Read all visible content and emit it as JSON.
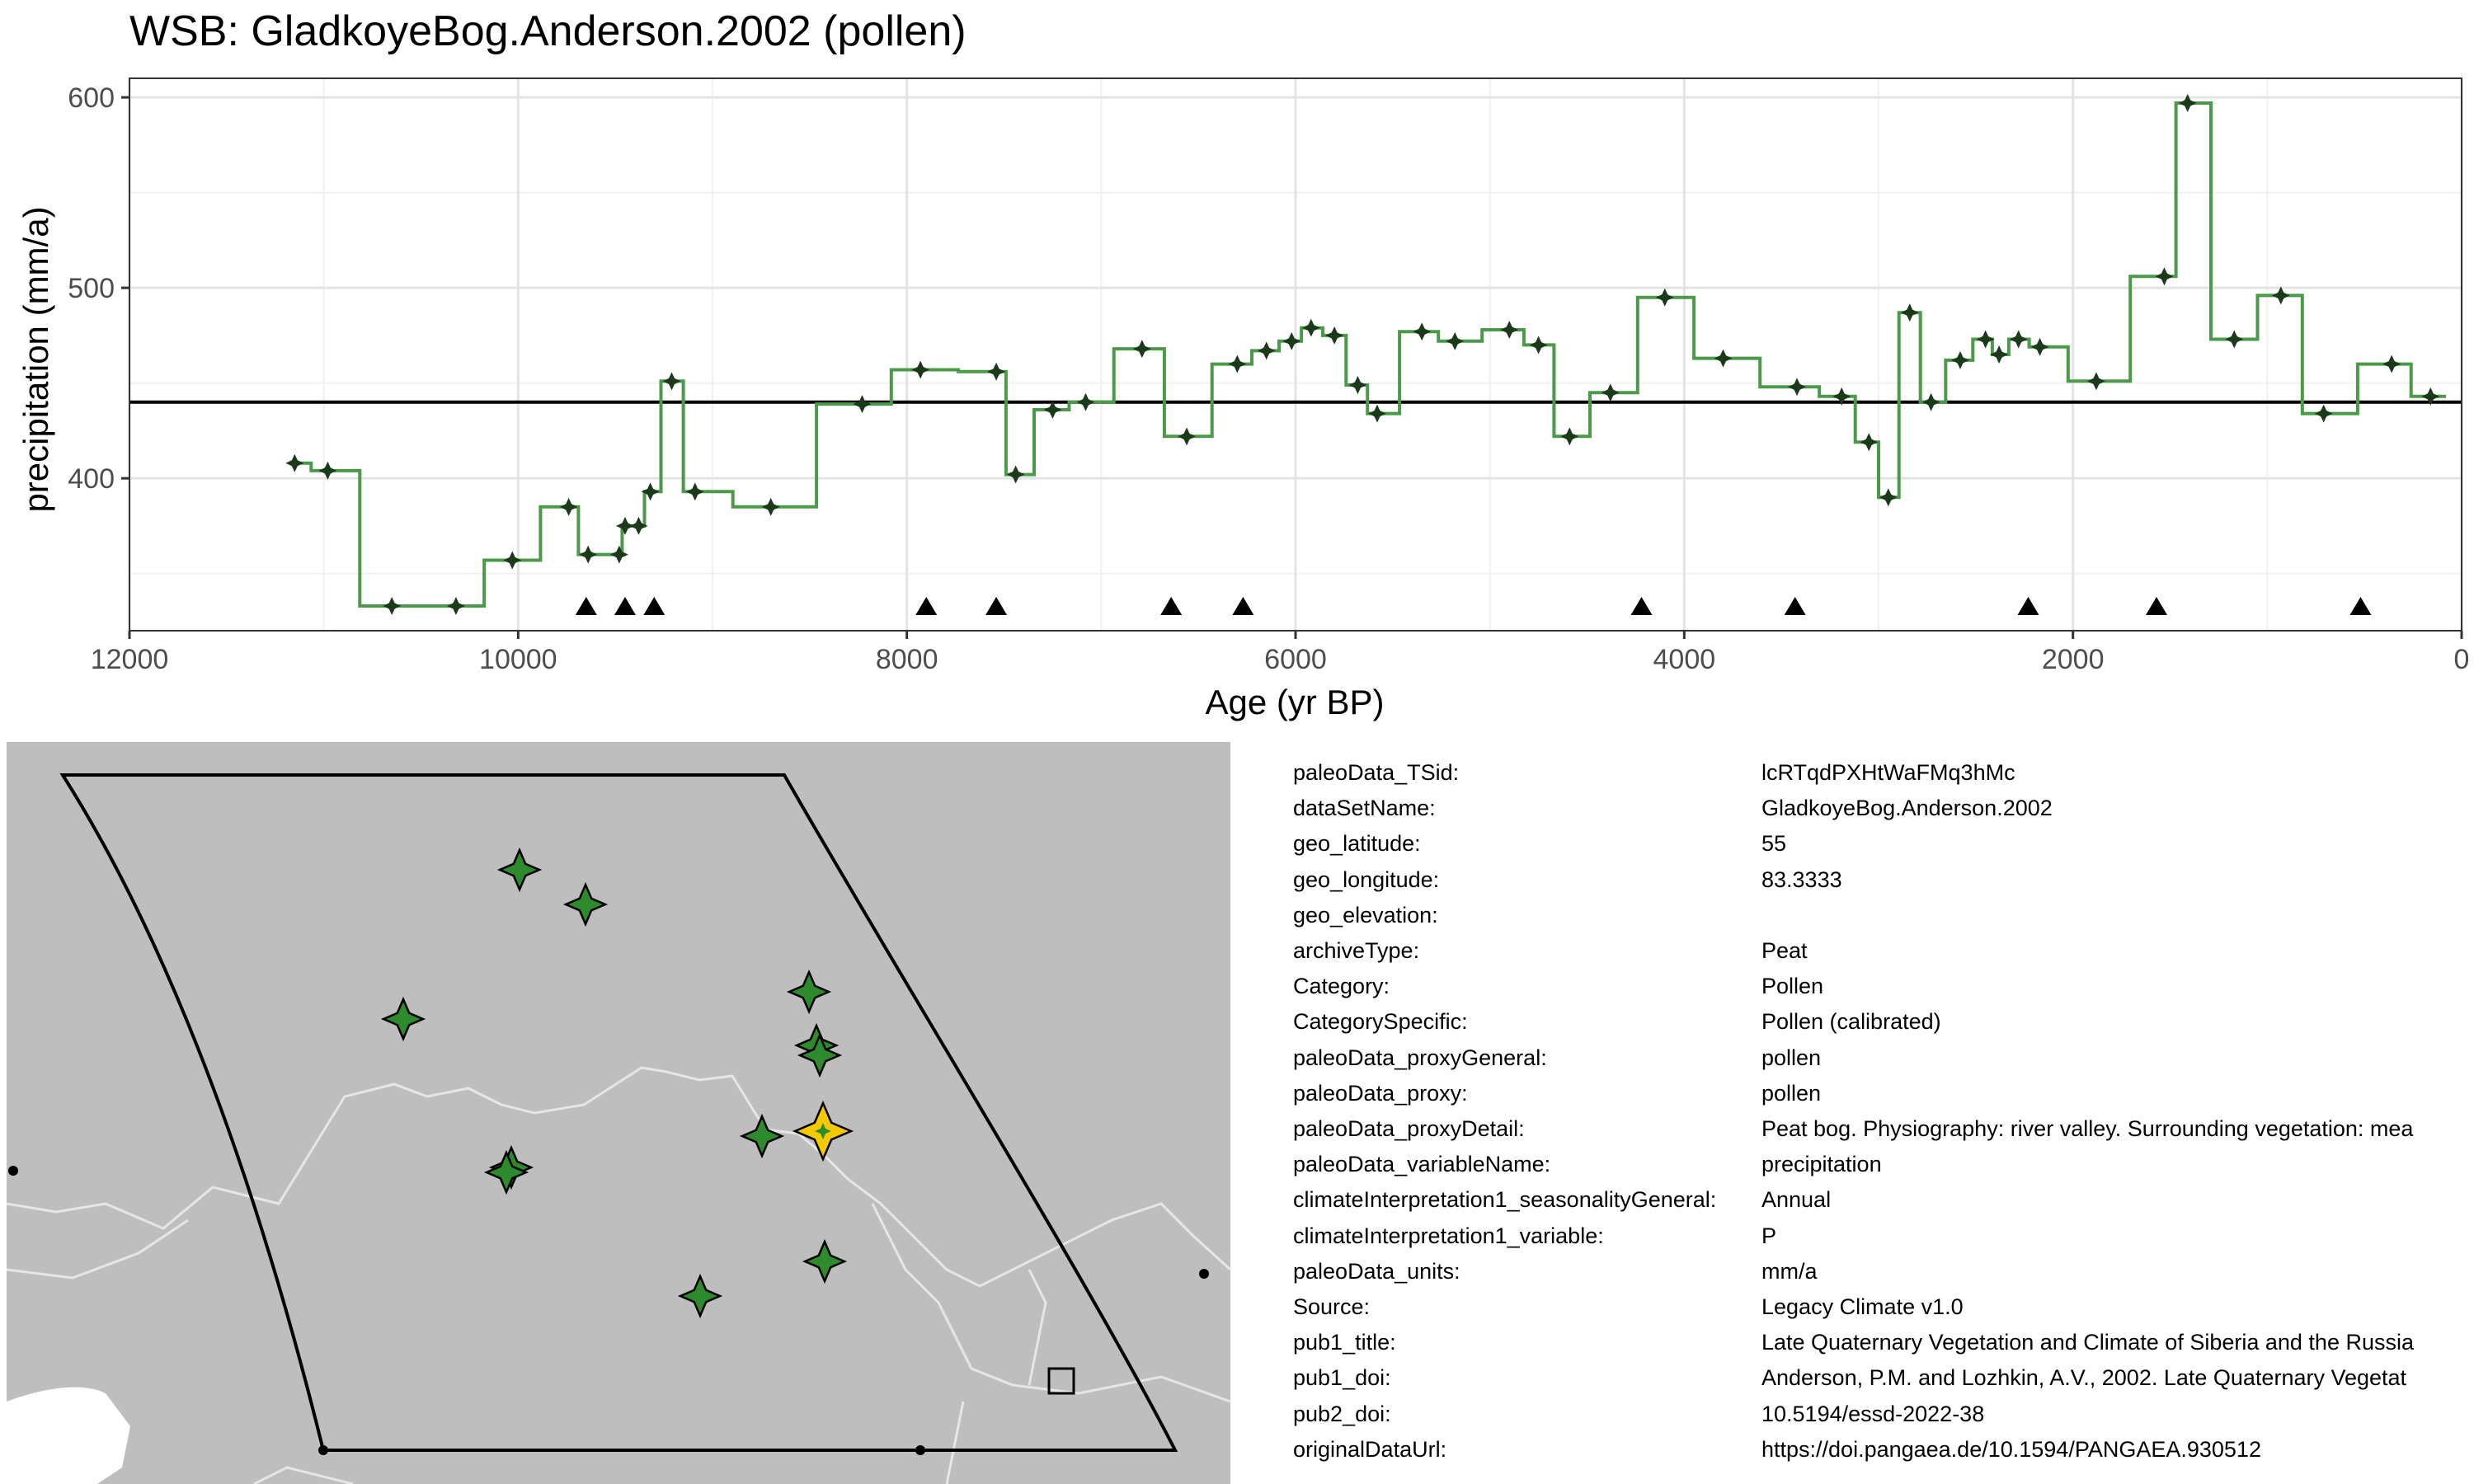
{
  "chart_data": {
    "type": "line",
    "subtype": "step",
    "title": "WSB: GladkoyeBog.Anderson.2002 (pollen)",
    "xlabel": "Age (yr BP)",
    "ylabel": "precipitation (mm/a)",
    "xlim": [
      12000,
      0
    ],
    "x_reversed": true,
    "ylim": [
      320,
      610
    ],
    "x_ticks": [
      12000,
      10000,
      8000,
      6000,
      4000,
      2000,
      0
    ],
    "y_ticks": [
      400,
      500,
      600
    ],
    "grid": true,
    "reference_line": 440,
    "line_color": "#4a9a4a",
    "point_color": "#1a3a1a",
    "series": [
      {
        "x": [
          11150,
          10980,
          10650,
          10320,
          10030,
          9740,
          9640,
          9480,
          9450,
          9380,
          9320,
          9210,
          9090,
          8700,
          8230,
          7930,
          7540,
          7440,
          7250,
          7080,
          6790,
          6560,
          6300,
          6150,
          6020,
          5920,
          5800,
          5680,
          5580,
          5350,
          5180,
          4900,
          4750,
          4590,
          4380,
          4100,
          3800,
          3420,
          3190,
          3050,
          2950,
          2840,
          2730,
          2580,
          2450,
          2380,
          2280,
          2170,
          1880,
          1530,
          1410,
          1170,
          930,
          710,
          360,
          160
        ],
        "y": [
          408,
          404,
          333,
          333,
          357,
          385,
          360,
          360,
          375,
          375,
          393,
          451,
          393,
          385,
          439,
          457,
          456,
          402,
          436,
          440,
          468,
          422,
          460,
          467,
          472,
          479,
          475,
          449,
          434,
          477,
          472,
          478,
          470,
          422,
          445,
          495,
          463,
          448,
          443,
          419,
          390,
          487,
          440,
          462,
          473,
          465,
          473,
          469,
          451,
          506,
          597,
          473,
          496,
          434,
          460,
          443
        ]
      }
    ],
    "age_control_points": [
      9650,
      9450,
      9300,
      7900,
      7540,
      6640,
      6270,
      4220,
      3430,
      2230,
      1570,
      520
    ]
  },
  "map": {
    "background_color": "#bebebe",
    "star_color": "#2d8a2d",
    "highlight_color": "#f5c800"
  },
  "metadata": [
    {
      "key": "paleoData_TSid:",
      "value": "lcRTqdPXHtWaFMq3hMc"
    },
    {
      "key": "dataSetName:",
      "value": "GladkoyeBog.Anderson.2002"
    },
    {
      "key": "geo_latitude:",
      "value": "55"
    },
    {
      "key": "geo_longitude:",
      "value": "83.3333"
    },
    {
      "key": "geo_elevation:",
      "value": ""
    },
    {
      "key": "archiveType:",
      "value": "Peat"
    },
    {
      "key": "Category:",
      "value": "Pollen"
    },
    {
      "key": "CategorySpecific:",
      "value": "Pollen (calibrated)"
    },
    {
      "key": "paleoData_proxyGeneral:",
      "value": "pollen"
    },
    {
      "key": "paleoData_proxy:",
      "value": "pollen"
    },
    {
      "key": "paleoData_proxyDetail:",
      "value": "Peat bog. Physiography: river valley. Surrounding vegetation: mea"
    },
    {
      "key": "paleoData_variableName:",
      "value": "precipitation"
    },
    {
      "key": "climateInterpretation1_seasonalityGeneral:",
      "value": "Annual"
    },
    {
      "key": "climateInterpretation1_variable:",
      "value": "P"
    },
    {
      "key": "paleoData_units:",
      "value": "mm/a"
    },
    {
      "key": "Source:",
      "value": "Legacy Climate v1.0"
    },
    {
      "key": "pub1_title:",
      "value": "Late Quaternary Vegetation and Climate of Siberia and the Russia"
    },
    {
      "key": "pub1_doi:",
      "value": "Anderson, P.M. and Lozhkin, A.V., 2002. Late Quaternary Vegetat"
    },
    {
      "key": "pub2_doi:",
      "value": "10.5194/essd-2022-38"
    },
    {
      "key": "originalDataUrl:",
      "value": "https://doi.pangaea.de/10.1594/PANGAEA.930512"
    }
  ]
}
